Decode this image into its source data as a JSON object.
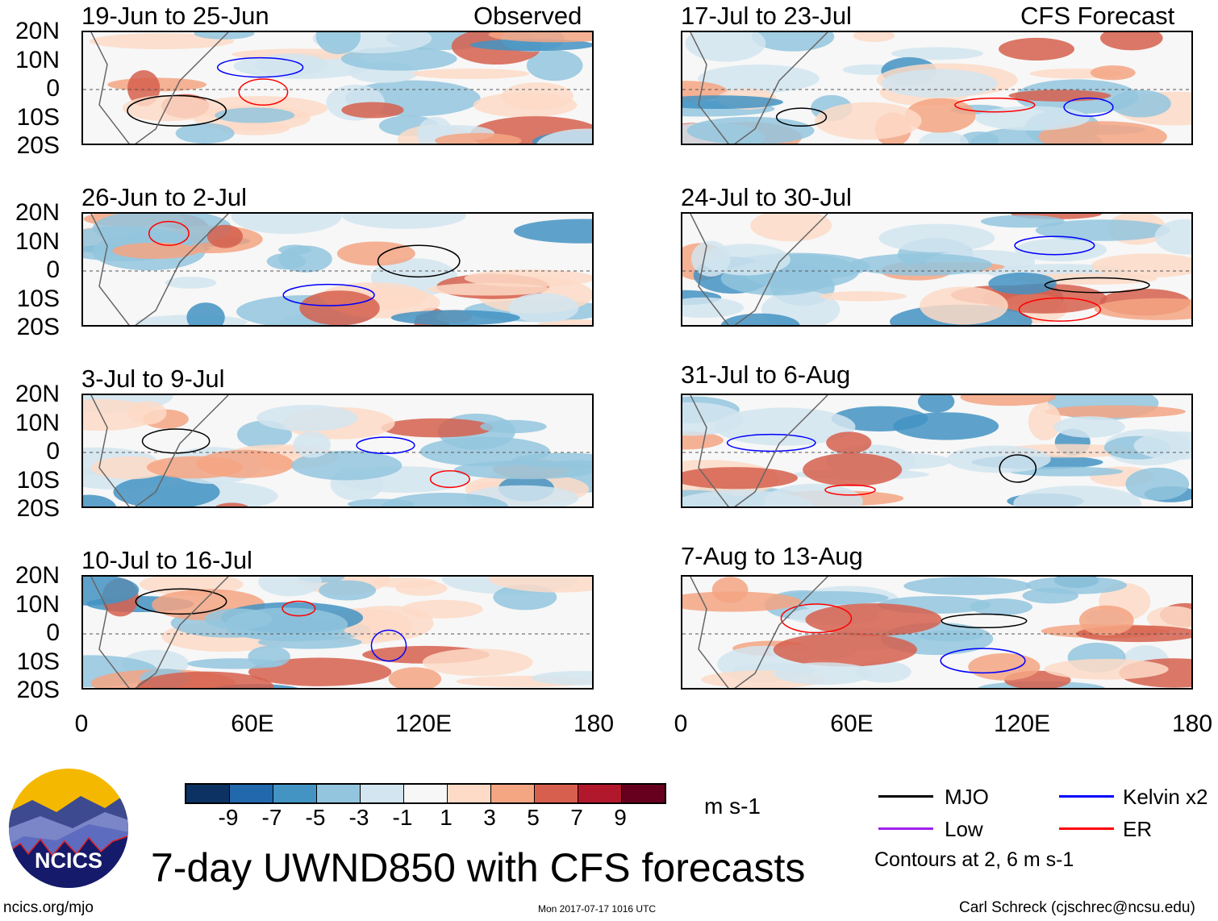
{
  "left_column": {
    "header_right": "Observed",
    "panels": [
      {
        "title": "19-Jun to 25-Jun"
      },
      {
        "title": "26-Jun to 2-Jul"
      },
      {
        "title": "3-Jul to 9-Jul"
      },
      {
        "title": "10-Jul to 16-Jul"
      }
    ]
  },
  "right_column": {
    "header_right": "CFS Forecast",
    "panels": [
      {
        "title": "17-Jul to 23-Jul"
      },
      {
        "title": "24-Jul to 30-Jul"
      },
      {
        "title": "31-Jul to 6-Aug"
      },
      {
        "title": "7-Aug to 13-Aug"
      }
    ]
  },
  "y_axis_labels": [
    "20N",
    "10N",
    "0",
    "10S",
    "20S"
  ],
  "x_axis_labels": [
    "0",
    "60E",
    "120E",
    "180"
  ],
  "colorbar": {
    "colors": [
      "#0b3262",
      "#2268ad",
      "#4393c3",
      "#93c5de",
      "#d2e5f0",
      "#f7f7f7",
      "#fddbc7",
      "#f4a582",
      "#d6604d",
      "#b2182b",
      "#67001f"
    ],
    "labels": [
      "-9",
      "-7",
      "-5",
      "-3",
      "-1",
      "1",
      "3",
      "5",
      "7",
      "9"
    ],
    "units": "m s-1"
  },
  "legend": {
    "items": [
      {
        "label": "MJO",
        "color": "#000000"
      },
      {
        "label": "Kelvin x2",
        "color": "#0000ff"
      },
      {
        "label": "Low",
        "color": "#a020f0"
      },
      {
        "label": "ER",
        "color": "#ff0000"
      }
    ],
    "note": "Contours at 2, 6 m s-1"
  },
  "logo": {
    "text": "NCICS"
  },
  "main_title": "7-day UWND850 with CFS forecasts",
  "footer": {
    "url": "ncics.org/mjo",
    "timestamp": "Mon 2017-07-17 1016 UTC",
    "author": "Carl Schreck (cjschrec@ncsu.edu)"
  }
}
